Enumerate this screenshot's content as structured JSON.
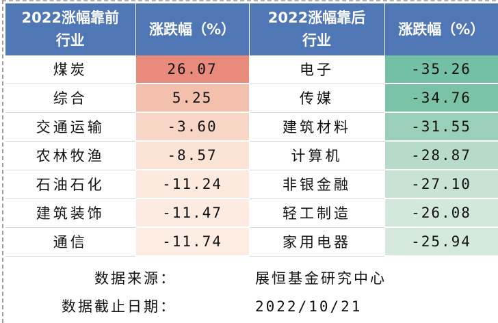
{
  "headers": {
    "top_sector": [
      "2022涨幅靠前",
      "行业"
    ],
    "top_change": [
      "涨跌幅（%）"
    ],
    "bottom_sector": [
      "2022涨幅靠后",
      "行业"
    ],
    "bottom_change": [
      "涨跌幅（%）"
    ]
  },
  "rows": [
    {
      "top_sector": "煤炭",
      "top_change": "26.07",
      "top_color": "#e88a7c",
      "bottom_sector": "电子",
      "bottom_change": "-35.26",
      "bottom_color": "#74c0a6"
    },
    {
      "top_sector": "综合",
      "top_change": "5.25",
      "top_color": "#f4c0ae",
      "bottom_sector": "传媒",
      "bottom_change": "-34.76",
      "bottom_color": "#7ac3a9"
    },
    {
      "top_sector": "交通运输",
      "top_change": "-3.60",
      "top_color": "#f8d6c6",
      "bottom_sector": "建筑材料",
      "bottom_change": "-31.55",
      "bottom_color": "#9acfb9"
    },
    {
      "top_sector": "农林牧渔",
      "top_change": "-8.57",
      "top_color": "#fbe3d6",
      "bottom_sector": "计算机",
      "bottom_change": "-28.87",
      "bottom_color": "#b6dbc9"
    },
    {
      "top_sector": "石油石化",
      "top_change": "-11.24",
      "top_color": "#fdeadf",
      "bottom_sector": "非银金融",
      "bottom_change": "-27.10",
      "bottom_color": "#c8e3d3"
    },
    {
      "top_sector": "建筑装饰",
      "top_change": "-11.47",
      "top_color": "#fdebe1",
      "bottom_sector": "轻工制造",
      "bottom_change": "-26.08",
      "bottom_color": "#d2e8da"
    },
    {
      "top_sector": "通信",
      "top_change": "-11.74",
      "top_color": "#fdece2",
      "bottom_sector": "家用电器",
      "bottom_change": "-25.94",
      "bottom_color": "#d4e9db"
    }
  ],
  "footer": {
    "source_label": "数据来源：",
    "source_value": "展恒基金研究中心",
    "date_label": "数据截止日期：",
    "date_value": "2022/10/21"
  },
  "colors": {
    "header_bg": "#4f76b5",
    "header_text": "#ffffff"
  }
}
